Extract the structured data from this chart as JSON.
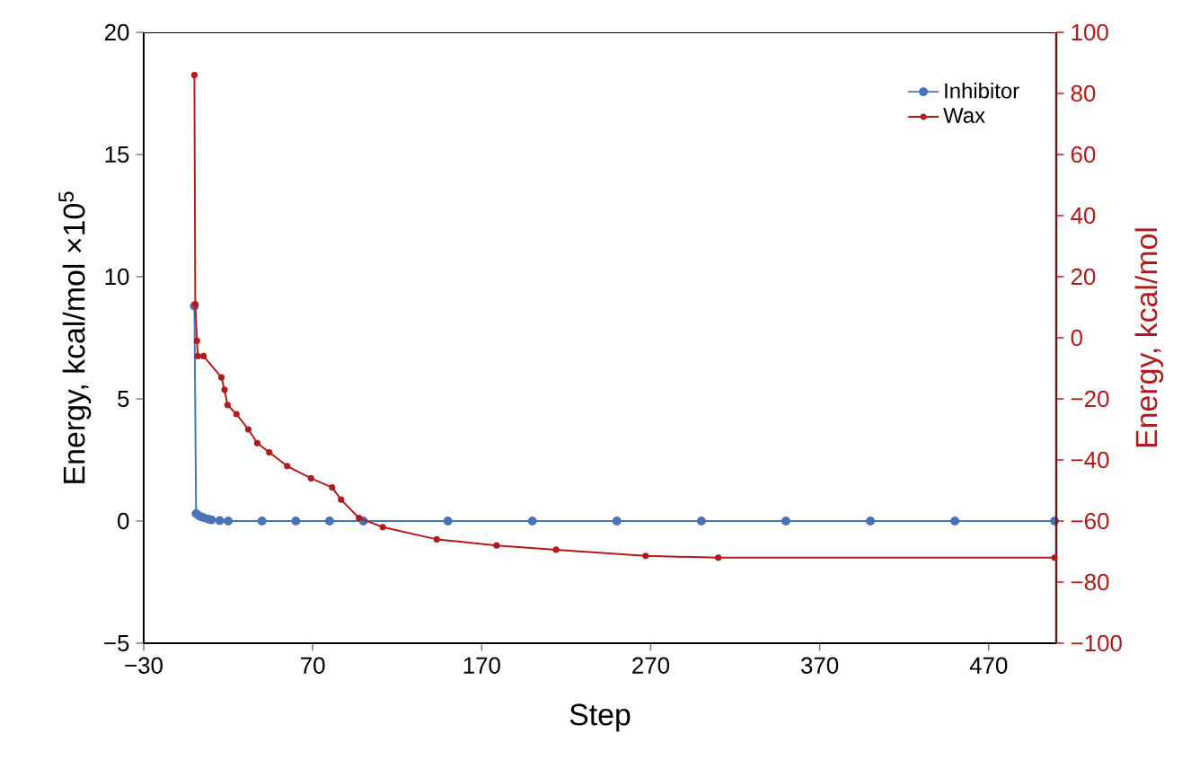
{
  "chart_data": {
    "type": "line",
    "xlabel": "Step",
    "ylabel": "Energy, kcal/mol ×10$^{5}$",
    "y2label": "Energy, kcal/mol",
    "xlim": [
      -30,
      510
    ],
    "xticks": [
      {
        "value": -30,
        "label": "−30"
      },
      70,
      170,
      270,
      370,
      470
    ],
    "ylim": [
      -5,
      20
    ],
    "yticks": [
      {
        "value": -5,
        "label": "−5"
      },
      0,
      5,
      10,
      15,
      20
    ],
    "y2lim": [
      -100,
      100
    ],
    "y2ticks": [
      {
        "value": -100,
        "label": "−100"
      },
      {
        "value": -80,
        "label": "−80"
      },
      {
        "value": -60,
        "label": "−60"
      },
      {
        "value": -40,
        "label": "−40"
      },
      {
        "value": -20,
        "label": "−20"
      },
      0,
      20,
      40,
      60,
      80,
      100
    ],
    "legend": "top right",
    "marker": "circle",
    "line_style": "solid",
    "grid": false,
    "series": [
      {
        "name": "Inhibitor",
        "color": "#4a72b8",
        "x": [
          0,
          1,
          3,
          5,
          8,
          10,
          15,
          20,
          40,
          60,
          80,
          100,
          150,
          200,
          250,
          300,
          350,
          400,
          450,
          509
        ],
        "values": [
          8.8,
          0.3,
          0.2,
          0.15,
          0.08,
          0.05,
          0.02,
          0,
          0,
          0,
          0,
          0,
          0,
          0,
          0,
          0,
          0,
          0,
          0,
          0
        ]
      },
      {
        "name": "Wax",
        "color": "#b01c1c",
        "axis": "y2",
        "x": [
          0,
          0.5,
          1.5,
          2,
          5.4,
          16,
          17.8,
          19.6,
          24.9,
          31.9,
          37.2,
          44.3,
          54.9,
          69,
          81.5,
          86.8,
          97.4,
          111.5,
          143.4,
          178.8,
          214,
          267,
          310,
          509
        ],
        "values": [
          86,
          11,
          -1,
          -6,
          -6,
          -13,
          -17,
          -22,
          -25,
          -30,
          -34.5,
          -37.5,
          -42,
          -46,
          -49,
          -53,
          -59,
          -62,
          -66,
          -68,
          -69.4,
          -71.4,
          -72,
          -72
        ]
      }
    ]
  }
}
